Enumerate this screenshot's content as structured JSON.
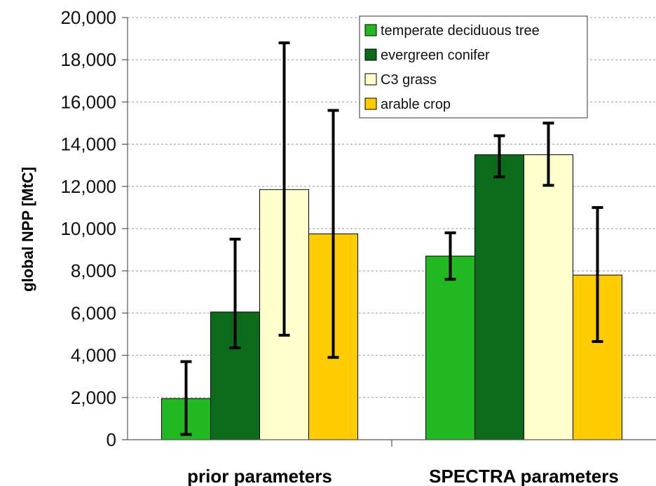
{
  "chart_data": {
    "type": "bar",
    "title": "",
    "xlabel": "",
    "ylabel": "global NPP [MtC]",
    "ylim": [
      0,
      20000
    ],
    "yticks": [
      0,
      2000,
      4000,
      6000,
      8000,
      10000,
      12000,
      14000,
      16000,
      18000,
      20000
    ],
    "ytick_labels": [
      "0",
      "2,000",
      "4,000",
      "6,000",
      "8,000",
      "10,000",
      "12,000",
      "14,000",
      "16,000",
      "18,000",
      "20,000"
    ],
    "grid": true,
    "legend_position": "top-right",
    "categories": [
      "prior parameters",
      "SPECTRA parameters"
    ],
    "series": [
      {
        "name": "temperate deciduous tree",
        "color": "#22b822",
        "values": [
          1950,
          8700
        ],
        "err_low": [
          250,
          7600
        ],
        "err_high": [
          3700,
          9800
        ]
      },
      {
        "name": "evergreen conifer",
        "color": "#0b6b1a",
        "values": [
          6050,
          13500
        ],
        "err_low": [
          4350,
          12450
        ],
        "err_high": [
          9500,
          14400
        ]
      },
      {
        "name": "C3 grass",
        "color": "#ffffcc",
        "values": [
          11850,
          13500
        ],
        "err_low": [
          4950,
          12050
        ],
        "err_high": [
          18800,
          15000
        ]
      },
      {
        "name": "arable crop",
        "color": "#ffcc00",
        "values": [
          9750,
          7800
        ],
        "err_low": [
          3900,
          4650
        ],
        "err_high": [
          15600,
          11000
        ]
      }
    ]
  }
}
